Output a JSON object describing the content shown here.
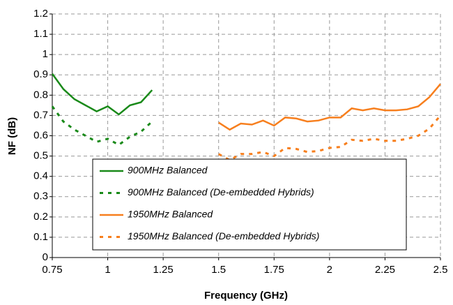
{
  "chart_data": {
    "type": "line",
    "xlabel": "Frequency (GHz)",
    "ylabel": "NF (dB)",
    "xlim": [
      0.75,
      2.5
    ],
    "xticks": [
      0.75,
      1,
      1.25,
      1.5,
      1.75,
      2,
      2.25,
      2.5
    ],
    "ylim": [
      0,
      1.2
    ],
    "yticks": [
      0,
      0.1,
      0.2,
      0.3,
      0.4,
      0.5,
      0.6,
      0.7,
      0.8,
      0.9,
      1,
      1.1,
      1.2
    ],
    "grid": true,
    "series": [
      {
        "name": "900MHz Balanced",
        "color": "#1a8a1a",
        "dashed": false,
        "x": [
          0.75,
          0.8,
          0.85,
          0.9,
          0.95,
          1.0,
          1.05,
          1.1,
          1.15,
          1.2
        ],
        "values": [
          0.905,
          0.83,
          0.78,
          0.75,
          0.72,
          0.745,
          0.705,
          0.75,
          0.765,
          0.825
        ]
      },
      {
        "name": "900MHz Balanced (De-embedded Hybrids)",
        "color": "#1a8a1a",
        "dashed": true,
        "x": [
          0.75,
          0.8,
          0.85,
          0.9,
          0.95,
          1.0,
          1.05,
          1.1,
          1.15,
          1.2
        ],
        "values": [
          0.745,
          0.67,
          0.63,
          0.6,
          0.57,
          0.585,
          0.555,
          0.595,
          0.62,
          0.67
        ]
      },
      {
        "name": "1950MHz Balanced",
        "color": "#f77f1e",
        "dashed": false,
        "x": [
          1.5,
          1.55,
          1.6,
          1.65,
          1.7,
          1.75,
          1.8,
          1.85,
          1.9,
          1.95,
          2.0,
          2.05,
          2.1,
          2.15,
          2.2,
          2.25,
          2.3,
          2.35,
          2.4,
          2.45,
          2.5
        ],
        "values": [
          0.665,
          0.63,
          0.66,
          0.655,
          0.675,
          0.65,
          0.69,
          0.685,
          0.67,
          0.675,
          0.69,
          0.69,
          0.735,
          0.725,
          0.735,
          0.725,
          0.725,
          0.73,
          0.745,
          0.79,
          0.855
        ]
      },
      {
        "name": "1950MHz Balanced (De-embedded Hybrids)",
        "color": "#f77f1e",
        "dashed": true,
        "x": [
          1.5,
          1.55,
          1.6,
          1.65,
          1.7,
          1.75,
          1.8,
          1.85,
          1.9,
          1.95,
          2.0,
          2.05,
          2.1,
          2.15,
          2.2,
          2.25,
          2.3,
          2.35,
          2.4,
          2.45,
          2.5
        ],
        "values": [
          0.51,
          0.48,
          0.51,
          0.51,
          0.52,
          0.5,
          0.54,
          0.535,
          0.52,
          0.525,
          0.54,
          0.545,
          0.58,
          0.575,
          0.585,
          0.575,
          0.575,
          0.585,
          0.6,
          0.635,
          0.7
        ]
      }
    ]
  }
}
